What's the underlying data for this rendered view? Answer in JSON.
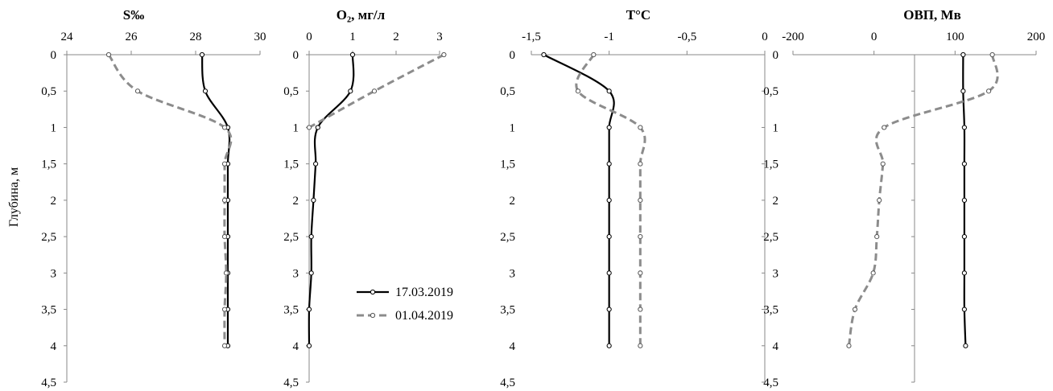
{
  "ylabel": "Глубина, м",
  "legend": {
    "entries": [
      {
        "name": "17.03.2019"
      },
      {
        "name": "01.04.2019"
      }
    ]
  },
  "colors": {
    "series_1": "#000000",
    "series_2": "#8c8c8c"
  },
  "chart_data": [
    {
      "type": "line",
      "title": "S‰",
      "x_ticks": [
        "24",
        "26",
        "28",
        "30"
      ],
      "y_ticks": [
        "0",
        "0,5",
        "1",
        "1,5",
        "2",
        "2,5",
        "3",
        "3,5",
        "4",
        "4,5"
      ],
      "xlim": [
        24,
        30
      ],
      "ylim": [
        0,
        4.5
      ],
      "depth": [
        0,
        0.5,
        1,
        1.5,
        2,
        2.5,
        3,
        3.5,
        4
      ],
      "series": [
        {
          "name": "17.03.2019",
          "values": [
            28.2,
            28.3,
            29.0,
            29.0,
            29.0,
            29.0,
            29.0,
            29.0,
            29.0
          ]
        },
        {
          "name": "01.04.2019",
          "values": [
            25.3,
            26.2,
            28.9,
            28.9,
            28.9,
            28.9,
            28.95,
            28.9,
            28.9
          ]
        }
      ]
    },
    {
      "type": "line",
      "title": "O₂, мг/л",
      "x_ticks": [
        "0",
        "1",
        "2",
        "3"
      ],
      "y_ticks": [
        "0",
        "0,5",
        "1",
        "1,5",
        "2",
        "2,5",
        "3",
        "3,5",
        "4",
        "4,5"
      ],
      "xlim": [
        0,
        3
      ],
      "ylim": [
        0,
        4.5
      ],
      "depth": [
        0,
        0.5,
        1,
        1.5,
        2,
        2.5,
        3,
        3.5,
        4
      ],
      "series": [
        {
          "name": "17.03.2019",
          "values": [
            1.0,
            0.95,
            0.2,
            0.15,
            0.1,
            0.05,
            0.05,
            0.0,
            0.0
          ]
        },
        {
          "name": "01.04.2019",
          "values": [
            3.1,
            1.5,
            0.0,
            null,
            null,
            null,
            null,
            null,
            null
          ]
        }
      ]
    },
    {
      "type": "line",
      "title": "T°C",
      "x_ticks": [
        "-1,5",
        "-1",
        "-0,5",
        "0"
      ],
      "y_ticks": [
        "0",
        "0,5",
        "1",
        "1,5",
        "2",
        "2,5",
        "3",
        "3,5",
        "4",
        "4,5"
      ],
      "xlim": [
        -1.5,
        0
      ],
      "ylim": [
        0,
        4.5
      ],
      "depth": [
        0,
        0.5,
        1,
        1.5,
        2,
        2.5,
        3,
        3.5,
        4
      ],
      "series": [
        {
          "name": "17.03.2019",
          "values": [
            -1.42,
            -1.0,
            -1.0,
            -1.0,
            -1.0,
            -1.0,
            -1.0,
            -1.0,
            -1.0
          ]
        },
        {
          "name": "01.04.2019",
          "values": [
            -1.1,
            -1.2,
            -0.8,
            -0.8,
            -0.8,
            -0.8,
            -0.8,
            -0.8,
            -0.8
          ]
        }
      ]
    },
    {
      "type": "line",
      "title": "ОВП, Мв",
      "x_ticks": [
        "-200",
        "0",
        "100",
        "200"
      ],
      "y_ticks": [
        "0",
        "0,5",
        "1",
        "1,5",
        "2",
        "2,5",
        "3",
        "3,5",
        "4",
        "4,5"
      ],
      "xlim": [
        -200,
        200
      ],
      "ylim": [
        0,
        4.5
      ],
      "depth": [
        0,
        0.5,
        1,
        1.5,
        2,
        2.5,
        3,
        3.5,
        4
      ],
      "series": [
        {
          "name": "17.03.2019",
          "values": [
            80,
            80,
            82,
            82,
            82,
            82,
            82,
            82,
            84
          ]
        },
        {
          "name": "01.04.2019",
          "values": [
            128,
            122,
            -50,
            -52,
            -58,
            -62,
            -68,
            -98,
            -108
          ]
        }
      ]
    }
  ]
}
